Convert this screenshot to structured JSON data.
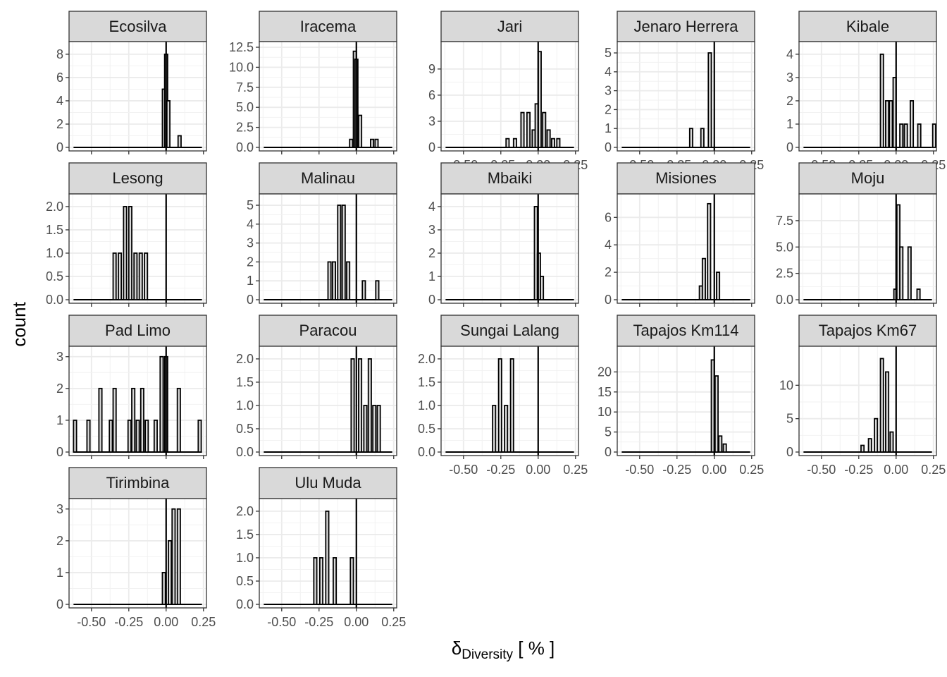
{
  "axes": {
    "xlabel_main": "δ",
    "xlabel_sub": "Diversity",
    "xlabel_unit": " [ % ]",
    "ylabel": "count"
  },
  "chart_data": [
    {
      "type": "bar",
      "facet": "Ecosilva",
      "ylim": [
        0,
        8.6
      ],
      "xlim": [
        -0.65,
        0.27
      ],
      "x_tick_labels": false,
      "y_ticks": [
        0,
        2,
        4,
        6,
        8
      ],
      "y_tick_labels": [
        "0",
        "2",
        "4",
        "6",
        "8"
      ],
      "bins": [
        {
          "x": -0.015,
          "count": 5
        },
        {
          "x": 0.0,
          "count": 8
        },
        {
          "x": 0.015,
          "count": 4
        },
        {
          "x": 0.09,
          "count": 1
        }
      ]
    },
    {
      "type": "bar",
      "facet": "Iracema",
      "ylim": [
        0,
        12.5
      ],
      "xlim": [
        -0.65,
        0.27
      ],
      "x_tick_labels": false,
      "y_ticks": [
        0,
        2.5,
        5,
        7.5,
        10,
        12.5
      ],
      "y_tick_labels": [
        "0.0",
        "2.5",
        "5.0",
        "7.5",
        "10.0",
        "12.5"
      ],
      "bins": [
        {
          "x": -0.035,
          "count": 1
        },
        {
          "x": -0.01,
          "count": 12
        },
        {
          "x": 0.0,
          "count": 11
        },
        {
          "x": 0.025,
          "count": 4
        },
        {
          "x": 0.105,
          "count": 1
        },
        {
          "x": 0.135,
          "count": 1
        }
      ]
    },
    {
      "type": "bar",
      "facet": "Jari",
      "ylim": [
        0,
        11.5
      ],
      "xlim": [
        -0.65,
        0.27
      ],
      "x_tick_labels": true,
      "y_ticks": [
        0,
        3,
        6,
        9
      ],
      "y_tick_labels": [
        "0",
        "3",
        "6",
        "9"
      ],
      "x_ticks": [
        -0.5,
        -0.25,
        0,
        0.25
      ],
      "x_tick_text": [
        "-0.50",
        "-0.25",
        "0.00",
        "0.25"
      ],
      "bins": [
        {
          "x": -0.205,
          "count": 1
        },
        {
          "x": -0.155,
          "count": 1
        },
        {
          "x": -0.105,
          "count": 4
        },
        {
          "x": -0.065,
          "count": 4
        },
        {
          "x": -0.03,
          "count": 2
        },
        {
          "x": -0.01,
          "count": 5
        },
        {
          "x": 0.01,
          "count": 11
        },
        {
          "x": 0.04,
          "count": 4
        },
        {
          "x": 0.07,
          "count": 2
        },
        {
          "x": 0.1,
          "count": 1
        },
        {
          "x": 0.135,
          "count": 1
        }
      ]
    },
    {
      "type": "bar",
      "facet": "Jenaro Herrera",
      "ylim": [
        0,
        5.3
      ],
      "xlim": [
        -0.65,
        0.27
      ],
      "x_tick_labels": true,
      "y_ticks": [
        0,
        1,
        2,
        3,
        4,
        5
      ],
      "y_tick_labels": [
        "0",
        "1",
        "2",
        "3",
        "4",
        "5"
      ],
      "x_ticks": [
        -0.5,
        -0.25,
        0,
        0.25
      ],
      "x_tick_text": [
        "-0.50",
        "-0.25",
        "0.00",
        "0.25"
      ],
      "bins": [
        {
          "x": -0.155,
          "count": 1
        },
        {
          "x": -0.08,
          "count": 1
        },
        {
          "x": -0.03,
          "count": 5
        }
      ]
    },
    {
      "type": "bar",
      "facet": "Kibale",
      "ylim": [
        0,
        4.3
      ],
      "xlim": [
        -0.65,
        0.27
      ],
      "x_tick_labels": true,
      "y_ticks": [
        0,
        1,
        2,
        3,
        4
      ],
      "y_tick_labels": [
        "0",
        "1",
        "2",
        "3",
        "4"
      ],
      "x_ticks": [
        -0.5,
        -0.25,
        0,
        0.25
      ],
      "x_tick_text": [
        "-0.50",
        "-0.25",
        "0.00",
        "0.25"
      ],
      "bins": [
        {
          "x": -0.095,
          "count": 4
        },
        {
          "x": -0.06,
          "count": 2
        },
        {
          "x": -0.035,
          "count": 2
        },
        {
          "x": -0.01,
          "count": 3
        },
        {
          "x": 0.035,
          "count": 1
        },
        {
          "x": 0.065,
          "count": 1
        },
        {
          "x": 0.105,
          "count": 2
        },
        {
          "x": 0.155,
          "count": 1
        },
        {
          "x": 0.255,
          "count": 1
        }
      ]
    },
    {
      "type": "bar",
      "facet": "Lesong",
      "ylim": [
        0,
        2.15
      ],
      "xlim": [
        -0.65,
        0.27
      ],
      "x_tick_labels": false,
      "y_ticks": [
        0,
        0.5,
        1,
        1.5,
        2
      ],
      "y_tick_labels": [
        "0.0",
        "0.5",
        "1.0",
        "1.5",
        "2.0"
      ],
      "bins": [
        {
          "x": -0.345,
          "count": 1
        },
        {
          "x": -0.31,
          "count": 1
        },
        {
          "x": -0.275,
          "count": 2
        },
        {
          "x": -0.24,
          "count": 2
        },
        {
          "x": -0.205,
          "count": 1
        },
        {
          "x": -0.17,
          "count": 1
        },
        {
          "x": -0.135,
          "count": 1
        }
      ]
    },
    {
      "type": "bar",
      "facet": "Malinau",
      "ylim": [
        0,
        5.3
      ],
      "xlim": [
        -0.65,
        0.27
      ],
      "x_tick_labels": false,
      "y_ticks": [
        0,
        1,
        2,
        3,
        4,
        5
      ],
      "y_tick_labels": [
        "0",
        "1",
        "2",
        "3",
        "4",
        "5"
      ],
      "bins": [
        {
          "x": -0.18,
          "count": 2
        },
        {
          "x": -0.15,
          "count": 2
        },
        {
          "x": -0.115,
          "count": 5
        },
        {
          "x": -0.085,
          "count": 5
        },
        {
          "x": -0.055,
          "count": 2
        },
        {
          "x": 0.05,
          "count": 1
        },
        {
          "x": 0.14,
          "count": 1
        }
      ]
    },
    {
      "type": "bar",
      "facet": "Mbaiki",
      "ylim": [
        0,
        4.3
      ],
      "xlim": [
        -0.65,
        0.27
      ],
      "x_tick_labels": false,
      "y_ticks": [
        0,
        1,
        2,
        3,
        4
      ],
      "y_tick_labels": [
        "0",
        "1",
        "2",
        "3",
        "4"
      ],
      "bins": [
        {
          "x": -0.015,
          "count": 4
        },
        {
          "x": 0.005,
          "count": 2
        },
        {
          "x": 0.025,
          "count": 1
        }
      ]
    },
    {
      "type": "bar",
      "facet": "Misiones",
      "ylim": [
        0,
        7.3
      ],
      "xlim": [
        -0.65,
        0.27
      ],
      "x_tick_labels": false,
      "y_ticks": [
        0,
        2,
        4,
        6
      ],
      "y_tick_labels": [
        "0",
        "2",
        "4",
        "6"
      ],
      "bins": [
        {
          "x": -0.09,
          "count": 1
        },
        {
          "x": -0.07,
          "count": 3
        },
        {
          "x": -0.035,
          "count": 7
        },
        {
          "x": 0.025,
          "count": 2
        }
      ]
    },
    {
      "type": "bar",
      "facet": "Moju",
      "ylim": [
        0,
        9.5
      ],
      "xlim": [
        -0.65,
        0.27
      ],
      "x_tick_labels": false,
      "y_ticks": [
        0,
        2.5,
        5,
        7.5
      ],
      "y_tick_labels": [
        "0.0",
        "2.5",
        "5.0",
        "7.5"
      ],
      "bins": [
        {
          "x": -0.005,
          "count": 1
        },
        {
          "x": 0.015,
          "count": 9
        },
        {
          "x": 0.035,
          "count": 5
        },
        {
          "x": 0.09,
          "count": 5
        },
        {
          "x": 0.15,
          "count": 1
        }
      ]
    },
    {
      "type": "bar",
      "facet": "Pad Limo",
      "ylim": [
        0,
        3.15
      ],
      "xlim": [
        -0.65,
        0.27
      ],
      "x_tick_labels": false,
      "y_ticks": [
        0,
        1,
        2,
        3
      ],
      "y_tick_labels": [
        "0",
        "1",
        "2",
        "3"
      ],
      "bins": [
        {
          "x": -0.61,
          "count": 1
        },
        {
          "x": -0.52,
          "count": 1
        },
        {
          "x": -0.44,
          "count": 2
        },
        {
          "x": -0.37,
          "count": 1
        },
        {
          "x": -0.345,
          "count": 2
        },
        {
          "x": -0.245,
          "count": 1
        },
        {
          "x": -0.22,
          "count": 2
        },
        {
          "x": -0.19,
          "count": 1
        },
        {
          "x": -0.16,
          "count": 2
        },
        {
          "x": -0.13,
          "count": 1
        },
        {
          "x": -0.07,
          "count": 1
        },
        {
          "x": -0.03,
          "count": 3
        },
        {
          "x": 0.0,
          "count": 3
        },
        {
          "x": 0.085,
          "count": 2
        },
        {
          "x": 0.225,
          "count": 1
        }
      ]
    },
    {
      "type": "bar",
      "facet": "Paracou",
      "ylim": [
        0,
        2.15
      ],
      "xlim": [
        -0.65,
        0.27
      ],
      "x_tick_labels": false,
      "y_ticks": [
        0,
        0.5,
        1,
        1.5,
        2
      ],
      "y_tick_labels": [
        "0.0",
        "0.5",
        "1.0",
        "1.5",
        "2.0"
      ],
      "bins": [
        {
          "x": -0.025,
          "count": 2
        },
        {
          "x": 0.025,
          "count": 2
        },
        {
          "x": 0.06,
          "count": 1
        },
        {
          "x": 0.09,
          "count": 2
        },
        {
          "x": 0.12,
          "count": 1
        },
        {
          "x": 0.15,
          "count": 1
        }
      ]
    },
    {
      "type": "bar",
      "facet": "Sungai Lalang",
      "ylim": [
        0,
        2.15
      ],
      "xlim": [
        -0.65,
        0.27
      ],
      "x_tick_labels": true,
      "y_ticks": [
        0,
        0.5,
        1,
        1.5,
        2
      ],
      "y_tick_labels": [
        "0.0",
        "0.5",
        "1.0",
        "1.5",
        "2.0"
      ],
      "x_ticks": [
        -0.5,
        -0.25,
        0,
        0.25
      ],
      "x_tick_text": [
        "-0.50",
        "-0.25",
        "0.00",
        "0.25"
      ],
      "bins": [
        {
          "x": -0.295,
          "count": 1
        },
        {
          "x": -0.255,
          "count": 2
        },
        {
          "x": -0.215,
          "count": 1
        },
        {
          "x": -0.175,
          "count": 2
        }
      ]
    },
    {
      "type": "bar",
      "facet": "Tapajos Km114",
      "ylim": [
        0,
        25
      ],
      "xlim": [
        -0.65,
        0.27
      ],
      "x_tick_labels": true,
      "y_ticks": [
        0,
        5,
        10,
        15,
        20
      ],
      "y_tick_labels": [
        "0",
        "5",
        "10",
        "15",
        "20"
      ],
      "x_ticks": [
        -0.5,
        -0.25,
        0,
        0.25
      ],
      "x_tick_text": [
        "-0.50",
        "-0.25",
        "0.00",
        "0.25"
      ],
      "bins": [
        {
          "x": -0.01,
          "count": 23
        },
        {
          "x": 0.015,
          "count": 19
        },
        {
          "x": 0.04,
          "count": 4
        },
        {
          "x": 0.07,
          "count": 2
        }
      ]
    },
    {
      "type": "bar",
      "facet": "Tapajos Km67",
      "ylim": [
        0,
        15
      ],
      "xlim": [
        -0.65,
        0.27
      ],
      "x_tick_labels": true,
      "y_ticks": [
        0,
        5,
        10
      ],
      "y_tick_labels": [
        "0",
        "5",
        "10"
      ],
      "x_ticks": [
        -0.5,
        -0.25,
        0,
        0.25
      ],
      "x_tick_text": [
        "-0.50",
        "-0.25",
        "0.00",
        "0.25"
      ],
      "bins": [
        {
          "x": -0.225,
          "count": 1
        },
        {
          "x": -0.175,
          "count": 2
        },
        {
          "x": -0.135,
          "count": 5
        },
        {
          "x": -0.095,
          "count": 14
        },
        {
          "x": -0.06,
          "count": 12
        },
        {
          "x": -0.03,
          "count": 3
        }
      ]
    },
    {
      "type": "bar",
      "facet": "Tirimbina",
      "ylim": [
        0,
        3.15
      ],
      "xlim": [
        -0.65,
        0.27
      ],
      "x_tick_labels": true,
      "y_ticks": [
        0,
        1,
        2,
        3
      ],
      "y_tick_labels": [
        "0",
        "1",
        "2",
        "3"
      ],
      "x_ticks": [
        -0.5,
        -0.25,
        0,
        0.25
      ],
      "x_tick_text": [
        "-0.50",
        "-0.25",
        "0.00",
        "0.25"
      ],
      "bins": [
        {
          "x": -0.015,
          "count": 1
        },
        {
          "x": 0.025,
          "count": 2
        },
        {
          "x": 0.05,
          "count": 3
        },
        {
          "x": 0.085,
          "count": 3
        }
      ]
    },
    {
      "type": "bar",
      "facet": "Ulu Muda",
      "ylim": [
        0,
        2.15
      ],
      "xlim": [
        -0.65,
        0.27
      ],
      "x_tick_labels": true,
      "y_ticks": [
        0,
        0.5,
        1,
        1.5,
        2
      ],
      "y_tick_labels": [
        "0.0",
        "0.5",
        "1.0",
        "1.5",
        "2.0"
      ],
      "x_ticks": [
        -0.5,
        -0.25,
        0,
        0.25
      ],
      "x_tick_text": [
        "-0.50",
        "-0.25",
        "0.00",
        "0.25"
      ],
      "bins": [
        {
          "x": -0.275,
          "count": 1
        },
        {
          "x": -0.235,
          "count": 1
        },
        {
          "x": -0.195,
          "count": 2
        },
        {
          "x": -0.145,
          "count": 1
        },
        {
          "x": -0.03,
          "count": 1
        }
      ]
    }
  ]
}
